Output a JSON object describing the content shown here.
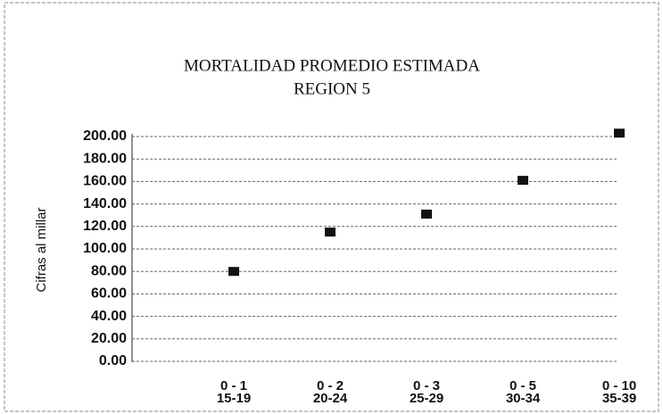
{
  "chart_data": {
    "type": "scatter",
    "title": "MORTALIDAD PROMEDIO ESTIMADA",
    "subtitle": "REGION 5",
    "y_label": "Cifras al millar",
    "categories": [
      [
        "0 - 1",
        "15-19"
      ],
      [
        "0 - 2",
        "20-24"
      ],
      [
        "0 - 3",
        "25-29"
      ],
      [
        "0 - 5",
        "30-34"
      ],
      [
        "0 - 10",
        "35-39"
      ]
    ],
    "values": [
      80,
      115,
      131,
      161,
      203
    ],
    "color": "#111111",
    "ylim": [
      0,
      200
    ],
    "yticks": [
      {
        "value": 0,
        "label": "0.00"
      },
      {
        "value": 20,
        "label": "20.00"
      },
      {
        "value": 40,
        "label": "40.00"
      },
      {
        "value": 60,
        "label": "60.00"
      },
      {
        "value": 80,
        "label": "80.00"
      },
      {
        "value": 100,
        "label": "100.00"
      },
      {
        "value": 120,
        "label": "120.00"
      },
      {
        "value": 140,
        "label": "140.00"
      },
      {
        "value": 160,
        "label": "160.00"
      },
      {
        "value": 180,
        "label": "180.00"
      },
      {
        "value": 200,
        "label": "200.00"
      }
    ],
    "grid": true
  }
}
